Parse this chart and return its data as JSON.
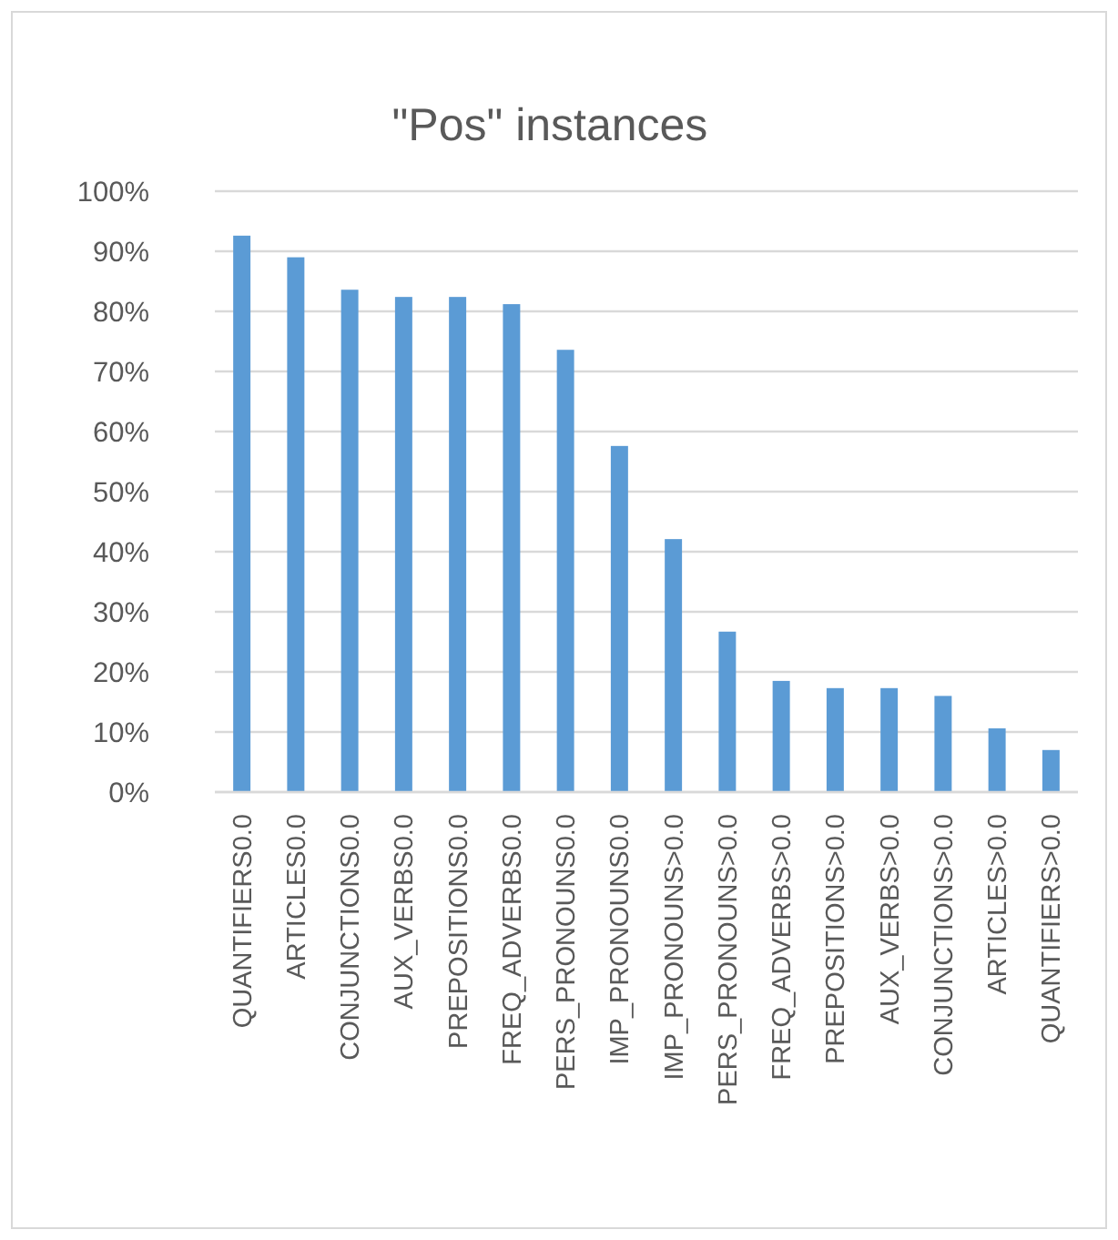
{
  "chart_data": {
    "type": "bar",
    "title": "\"Pos\" instances",
    "categories": [
      "QUANTIFIERS0.0",
      "ARTICLES0.0",
      "CONJUNCTIONS0.0",
      "AUX_VERBS0.0",
      "PREPOSITIONS0.0",
      "FREQ_ADVERBS0.0",
      "PERS_PRONOUNS0.0",
      "IMP_PRONOUNS0.0",
      "IMP_PRONOUNS>0.0",
      "PERS_PRONOUNS>0.0",
      "FREQ_ADVERBS>0.0",
      "PREPOSITIONS>0.0",
      "AUX_VERBS>0.0",
      "CONJUNCTIONS>0.0",
      "ARTICLES>0.0",
      "QUANTIFIERS>0.0"
    ],
    "values": [
      92.6,
      89,
      83.6,
      82.4,
      82.4,
      81.2,
      73.6,
      57.6,
      42.1,
      26.7,
      18.5,
      17.3,
      17.3,
      16,
      10.6,
      7
    ],
    "color": "#5b9bd5",
    "ylim": [
      0,
      100
    ],
    "yticks": [
      {
        "value": 0,
        "label": "0%"
      },
      {
        "value": 10,
        "label": "10%"
      },
      {
        "value": 20,
        "label": "20%"
      },
      {
        "value": 30,
        "label": "30%"
      },
      {
        "value": 40,
        "label": "40%"
      },
      {
        "value": 50,
        "label": "50%"
      },
      {
        "value": 60,
        "label": "60%"
      },
      {
        "value": 70,
        "label": "70%"
      },
      {
        "value": 80,
        "label": "80%"
      },
      {
        "value": 90,
        "label": "90%"
      },
      {
        "value": 100,
        "label": "100%"
      }
    ],
    "grid": true
  }
}
